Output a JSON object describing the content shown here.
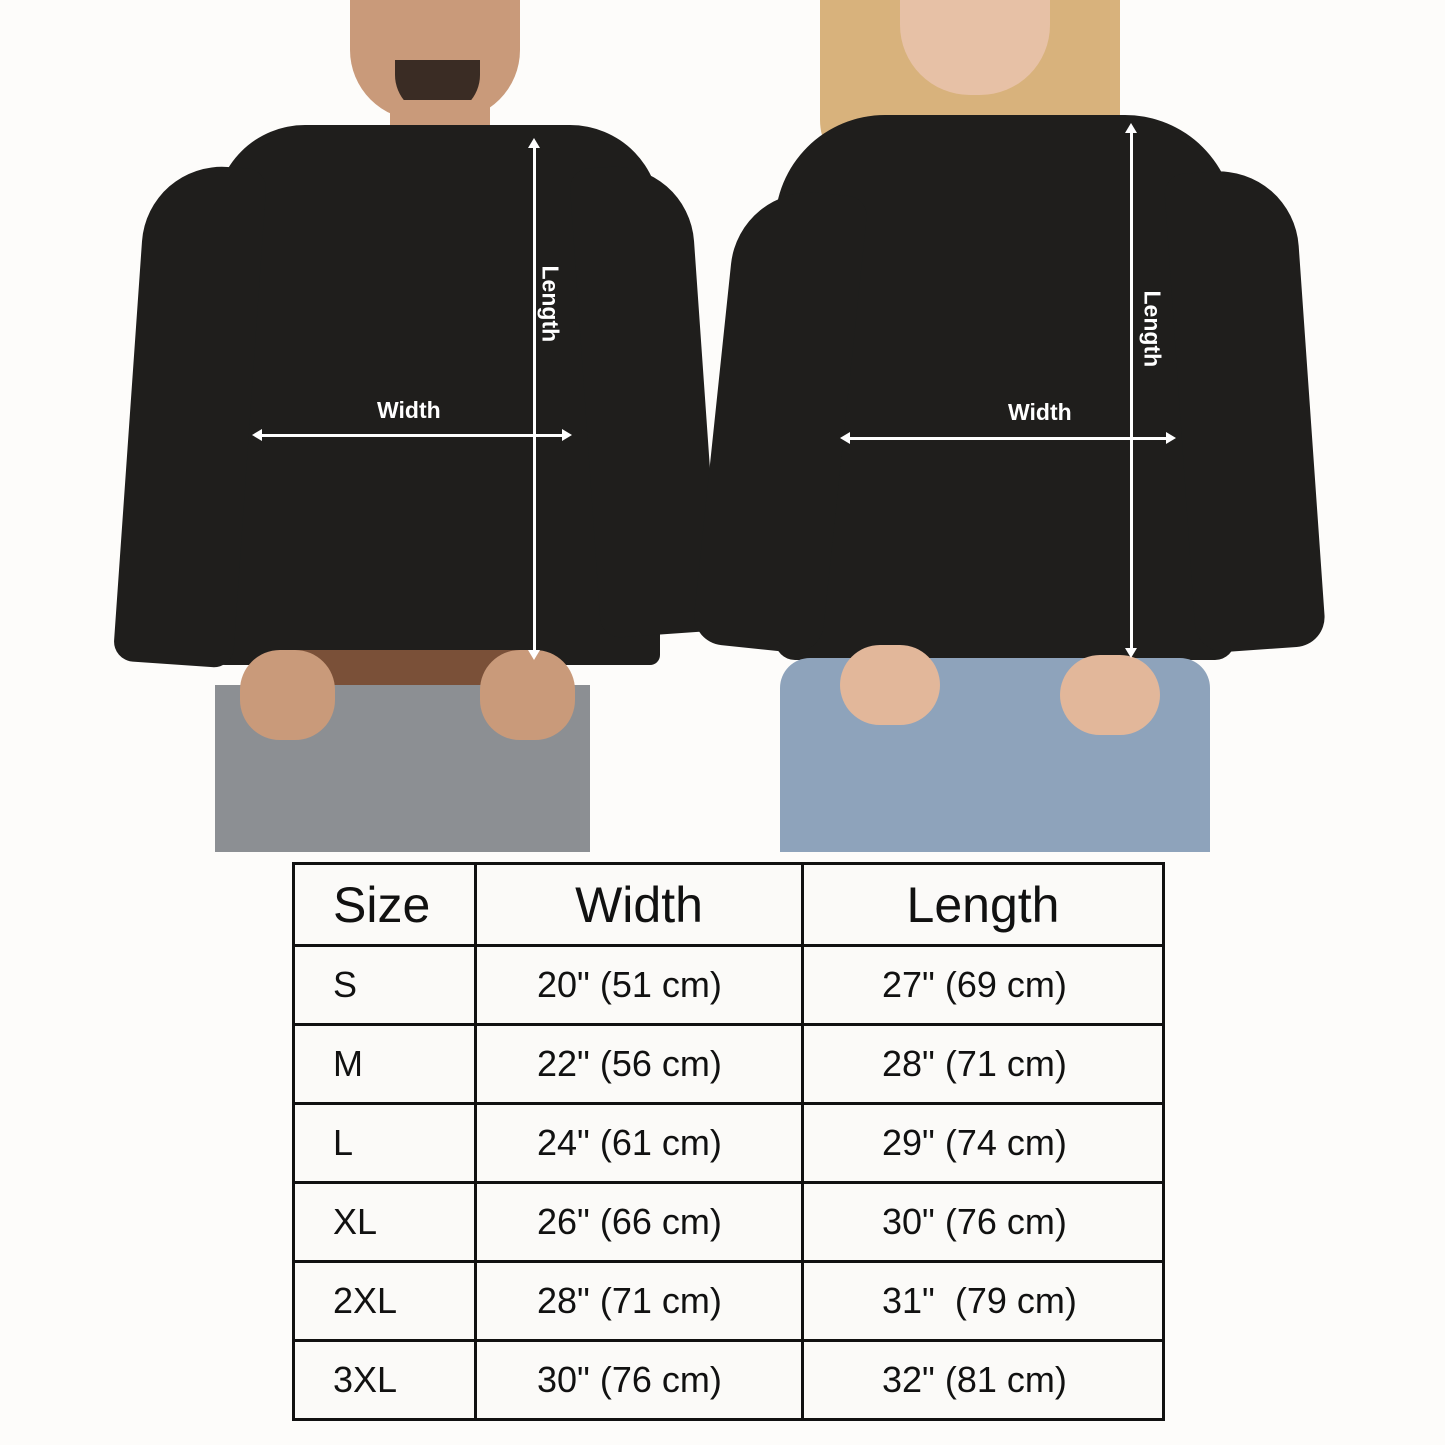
{
  "figures": {
    "man": {
      "width_label": "Width",
      "length_label": "Length"
    },
    "woman": {
      "width_label": "Width",
      "length_label": "Length"
    }
  },
  "size_table": {
    "headers": [
      "Size",
      "Width",
      "Length"
    ],
    "rows": [
      {
        "size": "S",
        "width": "20\" (51 cm)",
        "length": "27\" (69 cm)"
      },
      {
        "size": "M",
        "width": "22\" (56 cm)",
        "length": "28\" (71 cm)"
      },
      {
        "size": "L",
        "width": "24\" (61 cm)",
        "length": "29\" (74 cm)"
      },
      {
        "size": "XL",
        "width": "26\" (66 cm)",
        "length": "30\" (76 cm)"
      },
      {
        "size": "2XL",
        "width": "28\" (71 cm)",
        "length": "31\"  (79 cm)"
      },
      {
        "size": "3XL",
        "width": "30\" (76 cm)",
        "length": "32\" (81 cm)"
      }
    ]
  },
  "colors": {
    "sweater": "#1f1e1c",
    "table_border": "#111111",
    "arrow": "#ffffff"
  }
}
